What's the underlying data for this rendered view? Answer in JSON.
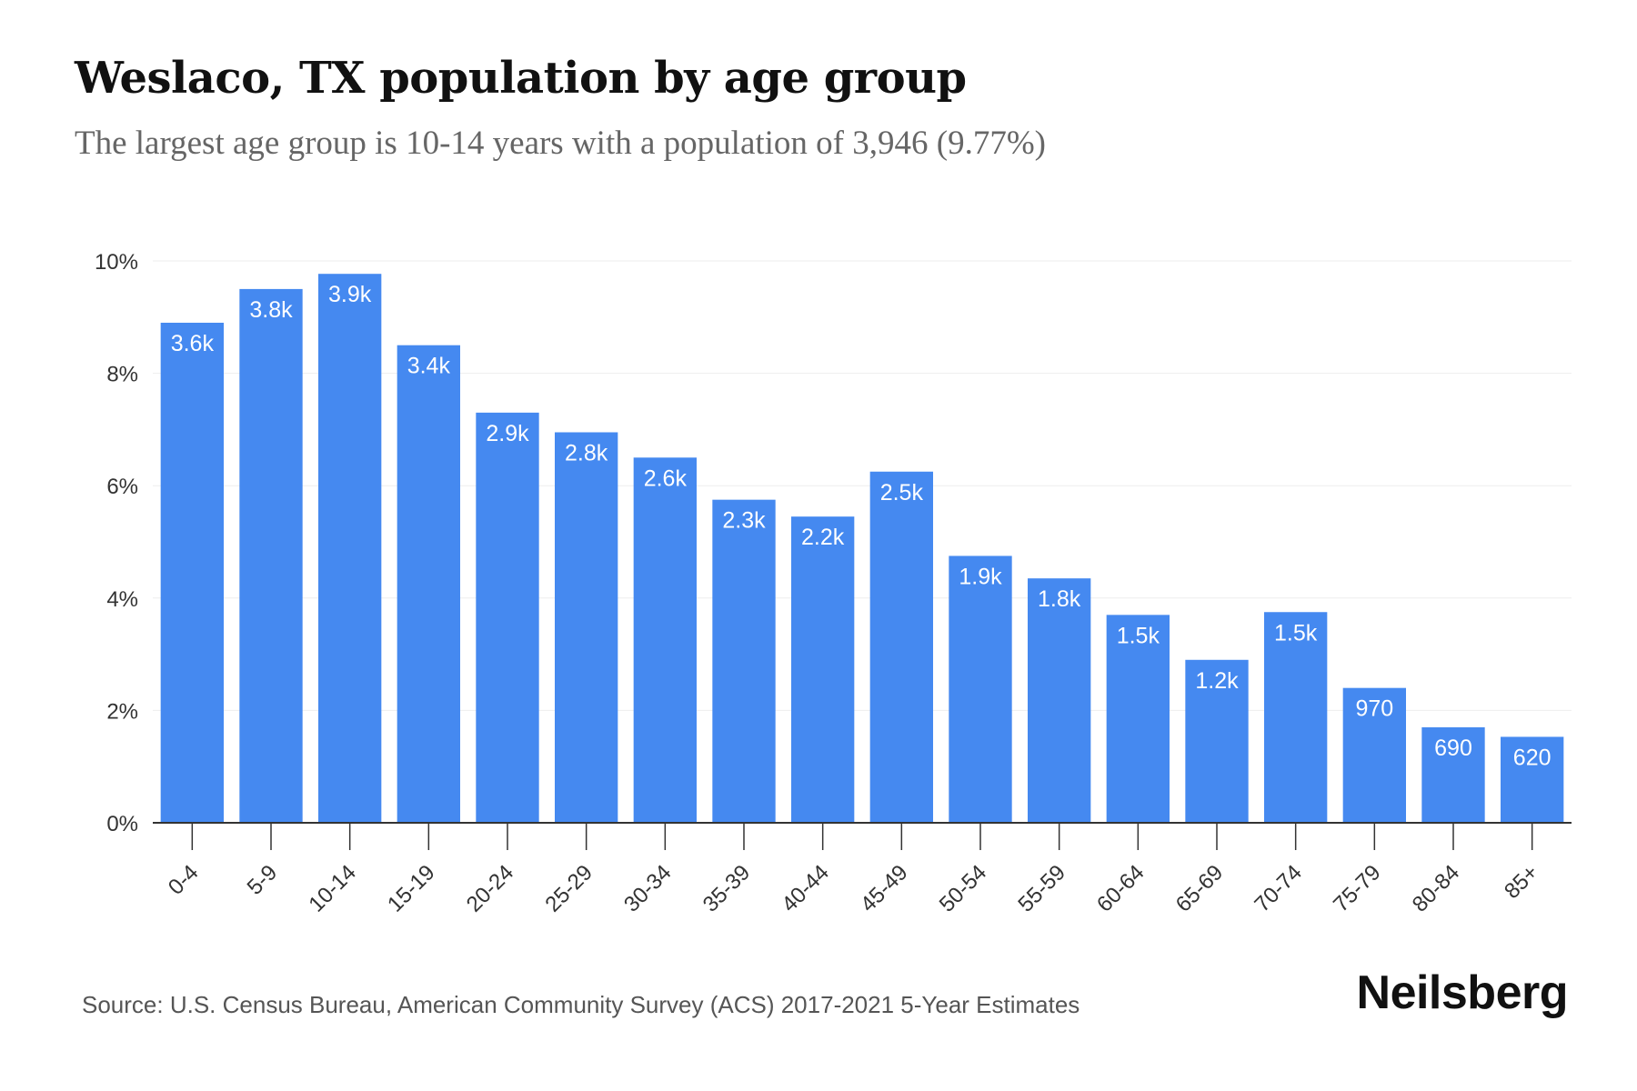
{
  "title": "Weslaco, TX population by age group",
  "subtitle": "The largest age group is 10-14 years with a population of 3,946 (9.77%)",
  "source": "Source: U.S. Census Bureau, American Community Survey (ACS) 2017-2021 5-Year Estimates",
  "logo": "Neilsberg",
  "colors": {
    "bar": "#4589f0",
    "bar_label": "#ffffff",
    "axis": "#333333",
    "grid": "#eeeeee",
    "tick_text": "#333333"
  },
  "chart_data": {
    "type": "bar",
    "categories": [
      "0-4",
      "5-9",
      "10-14",
      "15-19",
      "20-24",
      "25-29",
      "30-34",
      "35-39",
      "40-44",
      "45-49",
      "50-54",
      "55-59",
      "60-64",
      "65-69",
      "70-74",
      "75-79",
      "80-84",
      "85+"
    ],
    "values": [
      8.9,
      9.5,
      9.77,
      8.5,
      7.3,
      6.95,
      6.5,
      5.75,
      5.45,
      6.25,
      4.75,
      4.35,
      3.7,
      2.9,
      3.75,
      2.4,
      1.7,
      1.53
    ],
    "data_labels": [
      "3.6k",
      "3.8k",
      "3.9k",
      "3.4k",
      "2.9k",
      "2.8k",
      "2.6k",
      "2.3k",
      "2.2k",
      "2.5k",
      "1.9k",
      "1.8k",
      "1.5k",
      "1.2k",
      "1.5k",
      "970",
      "690",
      "620"
    ],
    "y_ticks": [
      0,
      2,
      4,
      6,
      8,
      10
    ],
    "y_tick_labels": [
      "0%",
      "2%",
      "4%",
      "6%",
      "8%",
      "10%"
    ],
    "ylim": [
      0,
      10
    ],
    "grid": true,
    "xlabel": "",
    "ylabel": ""
  }
}
